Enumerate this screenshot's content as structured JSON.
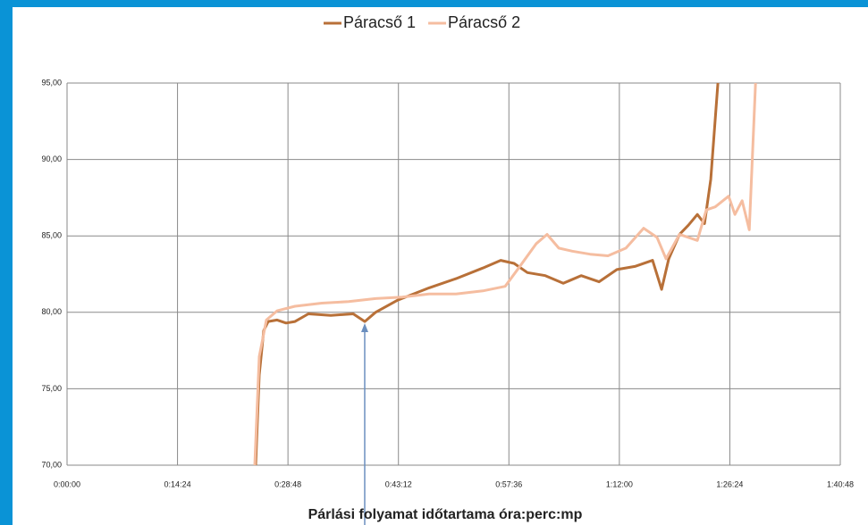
{
  "chart_data": {
    "type": "line",
    "x_label": "Párlási folyamat időtartama óra:perc:mp",
    "xlim": [
      0,
      6048
    ],
    "xticks": [
      {
        "value": 0,
        "label": "0:00:00"
      },
      {
        "value": 864,
        "label": "0:14:24"
      },
      {
        "value": 1728,
        "label": "0:28:48"
      },
      {
        "value": 2592,
        "label": "0:43:12"
      },
      {
        "value": 3456,
        "label": "0:57:36"
      },
      {
        "value": 4320,
        "label": "1:12:00"
      },
      {
        "value": 5184,
        "label": "1:26:24"
      },
      {
        "value": 6048,
        "label": "1:40:48"
      }
    ],
    "ylim": [
      70,
      95
    ],
    "yticks": [
      {
        "value": 70,
        "label": "70,00"
      },
      {
        "value": 75,
        "label": "75,00"
      },
      {
        "value": 80,
        "label": "80,00"
      },
      {
        "value": 85,
        "label": "85,00"
      },
      {
        "value": 90,
        "label": "90,00"
      },
      {
        "value": 95,
        "label": "95,00"
      }
    ],
    "grid": true,
    "legend": "top",
    "series": [
      {
        "name": "Páracső 1",
        "color": "#b87038",
        "x": [
          1475,
          1503,
          1538,
          1573,
          1643,
          1713,
          1783,
          1888,
          2063,
          2238,
          2329,
          2413,
          2587,
          2832,
          3042,
          3252,
          3392,
          3497,
          3601,
          3741,
          3881,
          4021,
          4161,
          4301,
          4441,
          4580,
          4650,
          4706,
          4790,
          4860,
          4930,
          4986,
          5035,
          5091
        ],
        "values": [
          70,
          75.9,
          78.8,
          79.4,
          79.5,
          79.3,
          79.4,
          79.9,
          79.8,
          79.9,
          79.4,
          80.0,
          80.8,
          81.6,
          82.2,
          82.9,
          83.4,
          83.2,
          82.6,
          82.4,
          81.9,
          82.4,
          82.0,
          82.8,
          83.0,
          83.4,
          81.5,
          83.5,
          85.1,
          85.7,
          86.4,
          85.8,
          88.7,
          95
        ]
      },
      {
        "name": "Páracső 2",
        "color": "#f5bda0",
        "x": [
          1468,
          1503,
          1559,
          1643,
          1783,
          1993,
          2203,
          2413,
          2622,
          2832,
          3042,
          3252,
          3427,
          3532,
          3671,
          3755,
          3846,
          3951,
          4091,
          4231,
          4371,
          4510,
          4615,
          4685,
          4790,
          4930,
          5000,
          5070,
          5175,
          5224,
          5280,
          5336,
          5385
        ],
        "values": [
          70,
          77.1,
          79.5,
          80.1,
          80.4,
          80.6,
          80.7,
          80.9,
          81.0,
          81.2,
          81.2,
          81.4,
          81.7,
          82.9,
          84.5,
          85.1,
          84.2,
          84.0,
          83.8,
          83.7,
          84.2,
          85.5,
          84.9,
          83.5,
          85.1,
          84.7,
          86.7,
          86.9,
          87.6,
          86.4,
          87.3,
          85.4,
          95
        ]
      }
    ]
  }
}
